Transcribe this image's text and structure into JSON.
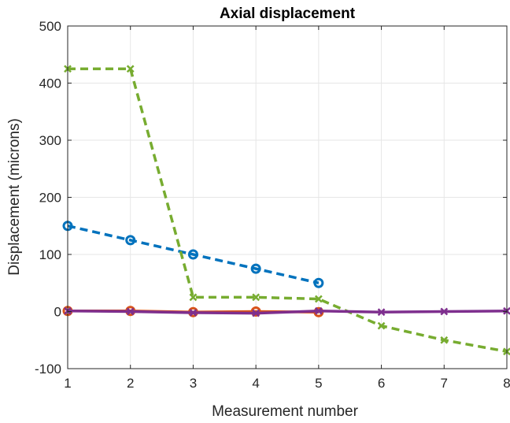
{
  "chart_data": {
    "type": "line",
    "title": "Axial displacement",
    "xlabel": "Measurement number",
    "ylabel": "Displacement (microns)",
    "xlim": [
      1,
      8
    ],
    "ylim": [
      -100,
      500
    ],
    "xticks": [
      1,
      2,
      3,
      4,
      5,
      6,
      7,
      8
    ],
    "yticks": [
      -100,
      0,
      100,
      200,
      300,
      400,
      500
    ],
    "grid": true,
    "series": [
      {
        "color": "#0072BD",
        "line_style": "dashed",
        "marker": "circle",
        "x": [
          1,
          2,
          3,
          4,
          5
        ],
        "y": [
          150,
          125,
          100,
          75,
          50
        ]
      },
      {
        "color": "#D95319",
        "line_style": "solid",
        "marker": "circle",
        "x": [
          1,
          2,
          3,
          4,
          5
        ],
        "y": [
          1,
          1,
          -1,
          0,
          -1
        ]
      },
      {
        "color": "#77AC30",
        "line_style": "dashed",
        "marker": "x",
        "x": [
          1,
          2,
          3,
          4,
          5,
          6,
          7,
          8
        ],
        "y": [
          425,
          425,
          25,
          25,
          22,
          -25,
          -50,
          -70
        ]
      },
      {
        "color": "#7E2F8E",
        "line_style": "solid",
        "marker": "x",
        "x": [
          1,
          2,
          3,
          4,
          5,
          6,
          7,
          8
        ],
        "y": [
          1,
          0,
          -2,
          -3,
          1,
          -1,
          0,
          1
        ]
      }
    ]
  }
}
